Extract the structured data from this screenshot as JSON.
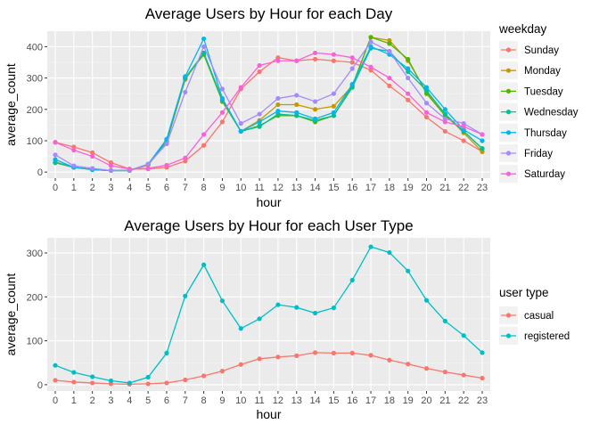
{
  "chart_data": [
    {
      "type": "line",
      "title": "Average Users by Hour for each Day",
      "xlabel": "hour",
      "ylabel": "average_count",
      "x": [
        0,
        1,
        2,
        3,
        4,
        5,
        6,
        7,
        8,
        9,
        10,
        11,
        12,
        13,
        14,
        15,
        16,
        17,
        18,
        19,
        20,
        21,
        22,
        23
      ],
      "xlim": [
        0,
        23
      ],
      "ylim": [
        0,
        430
      ],
      "yticks": [
        0,
        100,
        200,
        300,
        400
      ],
      "grid": true,
      "legend_title": "weekday",
      "legend_position": "right",
      "series": [
        {
          "name": "Sunday",
          "color": "#F8766D",
          "values": [
            95,
            80,
            62,
            30,
            10,
            10,
            15,
            35,
            85,
            160,
            265,
            320,
            365,
            355,
            360,
            355,
            350,
            325,
            275,
            230,
            175,
            130,
            100,
            65
          ]
        },
        {
          "name": "Monday",
          "color": "#C49A00",
          "values": [
            32,
            15,
            8,
            5,
            5,
            22,
            95,
            295,
            380,
            230,
            130,
            165,
            215,
            215,
            200,
            210,
            275,
            430,
            420,
            355,
            255,
            185,
            125,
            65
          ]
        },
        {
          "name": "Tuesday",
          "color": "#53B400",
          "values": [
            30,
            15,
            8,
            5,
            5,
            25,
            100,
            300,
            375,
            225,
            130,
            148,
            180,
            180,
            160,
            180,
            275,
            430,
            410,
            360,
            250,
            180,
            130,
            75
          ]
        },
        {
          "name": "Wednesday",
          "color": "#00C094",
          "values": [
            30,
            15,
            8,
            5,
            5,
            25,
            100,
            300,
            380,
            230,
            130,
            145,
            185,
            180,
            165,
            180,
            270,
            395,
            385,
            320,
            260,
            185,
            130,
            75
          ]
        },
        {
          "name": "Thursday",
          "color": "#00B6EB",
          "values": [
            40,
            15,
            8,
            5,
            5,
            25,
            105,
            305,
            425,
            235,
            130,
            160,
            195,
            190,
            170,
            190,
            280,
            400,
            375,
            330,
            270,
            200,
            135,
            100
          ]
        },
        {
          "name": "Friday",
          "color": "#A58AFF",
          "values": [
            55,
            20,
            12,
            5,
            5,
            25,
            90,
            255,
            400,
            265,
            155,
            185,
            235,
            245,
            225,
            250,
            330,
            415,
            385,
            300,
            220,
            170,
            155,
            120
          ]
        },
        {
          "name": "Saturday",
          "color": "#FB61D7",
          "values": [
            95,
            70,
            50,
            20,
            10,
            12,
            22,
            45,
            120,
            190,
            270,
            340,
            355,
            355,
            380,
            375,
            365,
            335,
            300,
            250,
            190,
            160,
            145,
            120
          ]
        }
      ]
    },
    {
      "type": "line",
      "title": "Average Users by Hour for each User Type",
      "xlabel": "hour",
      "ylabel": "average_count",
      "x": [
        0,
        1,
        2,
        3,
        4,
        5,
        6,
        7,
        8,
        9,
        10,
        11,
        12,
        13,
        14,
        15,
        16,
        17,
        18,
        19,
        20,
        21,
        22,
        23
      ],
      "xlim": [
        0,
        23
      ],
      "ylim": [
        0,
        320
      ],
      "yticks": [
        0,
        100,
        200,
        300
      ],
      "grid": true,
      "legend_title": "user type",
      "legend_position": "right",
      "series": [
        {
          "name": "casual",
          "color": "#F8766D",
          "values": [
            10,
            6,
            4,
            2,
            1,
            2,
            4,
            11,
            20,
            31,
            46,
            59,
            63,
            66,
            73,
            72,
            72,
            67,
            56,
            47,
            37,
            29,
            22,
            15
          ]
        },
        {
          "name": "registered",
          "color": "#00BFC4",
          "values": [
            44,
            28,
            18,
            9,
            4,
            17,
            72,
            202,
            273,
            191,
            128,
            150,
            182,
            176,
            163,
            175,
            238,
            314,
            301,
            259,
            192,
            145,
            112,
            73
          ]
        }
      ]
    }
  ]
}
